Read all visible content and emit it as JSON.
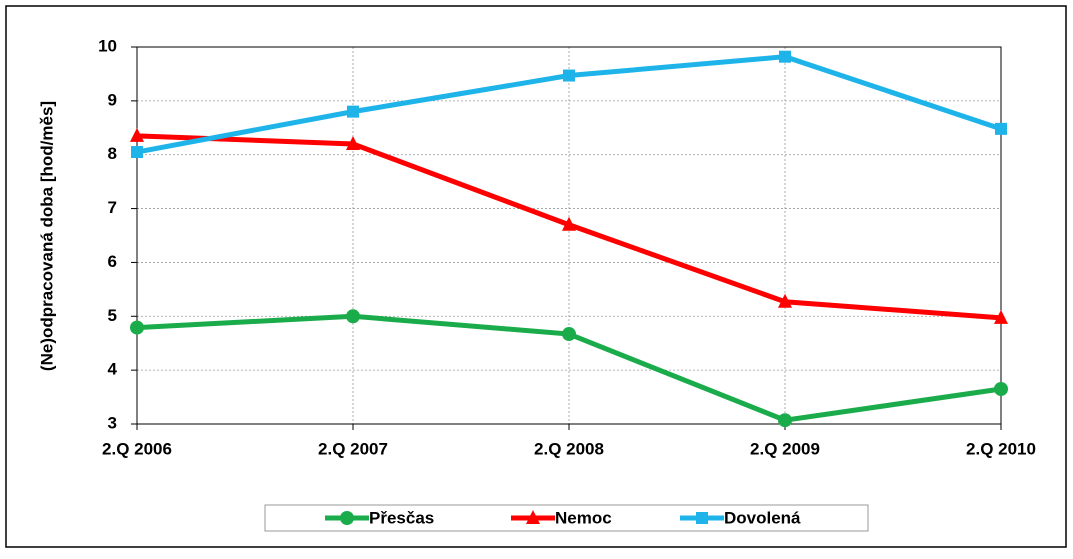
{
  "chart_data": {
    "type": "line",
    "y_label": "(Ne)odpracovaná doba [hod/měs]",
    "categories": [
      "2.Q 2006",
      "2.Q 2007",
      "2.Q 2008",
      "2.Q 2009",
      "2.Q 2010"
    ],
    "series": [
      {
        "name": "Přesčas",
        "color": "#1aab4b",
        "marker": "circle",
        "values": [
          4.79,
          5.0,
          4.67,
          3.07,
          3.65
        ]
      },
      {
        "name": "Nemoc",
        "color": "#ff0000",
        "marker": "triangle",
        "values": [
          8.35,
          8.2,
          6.7,
          5.27,
          4.97
        ]
      },
      {
        "name": "Dovolená",
        "color": "#1eb4ea",
        "marker": "square",
        "values": [
          8.05,
          8.8,
          9.47,
          9.82,
          8.48
        ]
      }
    ],
    "ylim": [
      3,
      10
    ],
    "yticks": [
      3,
      4,
      5,
      6,
      7,
      8,
      9,
      10
    ],
    "grid": true,
    "legend": "bottom"
  }
}
